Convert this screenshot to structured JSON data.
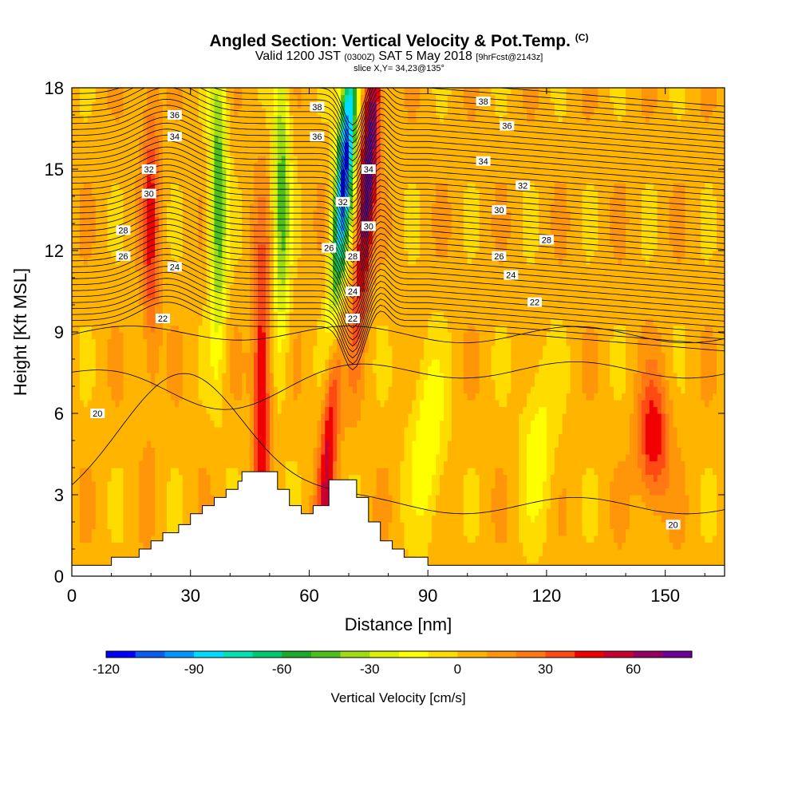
{
  "header": {
    "title_main": "Angled Section: Vertical Velocity & Pot.Temp.",
    "title_mark": "(C)",
    "valid_pre": "Valid 1200 JST",
    "valid_utc": "(0300Z)",
    "valid_date": "SAT 5 May 2018",
    "valid_fcst": "[9hrFcst@2143z]",
    "slice": "slice X,Y= 34,23@135°"
  },
  "chart_data": {
    "type": "heatmap",
    "xlabel": "Distance [nm]",
    "ylabel": "Height [Kft MSL]",
    "xlim": [
      0,
      165
    ],
    "ylim": [
      0,
      18
    ],
    "xticks": [
      0,
      30,
      60,
      90,
      120,
      150
    ],
    "yticks": [
      0,
      3,
      6,
      9,
      12,
      15,
      18
    ],
    "colorbar": {
      "label": "Vertical Velocity [cm/s]",
      "ticks": [
        -120,
        -90,
        -60,
        -30,
        0,
        30,
        60
      ],
      "levels": [
        -120,
        -110,
        -100,
        -90,
        -80,
        -70,
        -60,
        -50,
        -40,
        -30,
        -20,
        -10,
        0,
        10,
        20,
        30,
        40,
        50,
        60,
        70,
        80
      ],
      "colors": [
        "#0000ff",
        "#0a5cf0",
        "#0096ff",
        "#00dcff",
        "#00e0b0",
        "#00c870",
        "#1caa2a",
        "#4cbf1c",
        "#a0dc14",
        "#dcf000",
        "#ffff00",
        "#ffdc00",
        "#ffb400",
        "#ff960a",
        "#ff7814",
        "#ff4a14",
        "#f00000",
        "#c80032",
        "#960064",
        "#6e0096"
      ]
    },
    "velocity_features": [
      {
        "kind": "updraft",
        "x": 20,
        "y": 13,
        "peak_cms": 35
      },
      {
        "kind": "updraft",
        "x": 48,
        "y": 7,
        "peak_cms": 50
      },
      {
        "kind": "updraft",
        "x": 65,
        "y": 5,
        "peak_cms": 50
      },
      {
        "kind": "updraft",
        "x": 75,
        "y": 15,
        "peak_cms": 75
      },
      {
        "kind": "downdraft",
        "x": 69,
        "y": 15,
        "peak_cms": -120
      },
      {
        "kind": "downdraft",
        "x": 37,
        "y": 14,
        "peak_cms": -55
      },
      {
        "kind": "downdraft",
        "x": 53,
        "y": 14,
        "peak_cms": -50
      },
      {
        "kind": "updraft",
        "x": 147,
        "y": 5,
        "peak_cms": 45
      },
      {
        "kind": "weak_downdraft",
        "x": 90,
        "y": 5,
        "peak_cms": -25
      },
      {
        "kind": "weak_downdraft",
        "x": 118,
        "y": 5,
        "peak_cms": -20
      }
    ],
    "terrain": [
      [
        0,
        0.4
      ],
      [
        10,
        0.4
      ],
      [
        10,
        0.7
      ],
      [
        17,
        0.7
      ],
      [
        17,
        1.0
      ],
      [
        20,
        1.0
      ],
      [
        20,
        1.3
      ],
      [
        23,
        1.3
      ],
      [
        23,
        1.6
      ],
      [
        27,
        1.6
      ],
      [
        27,
        1.9
      ],
      [
        30,
        1.9
      ],
      [
        30,
        2.3
      ],
      [
        33,
        2.3
      ],
      [
        33,
        2.6
      ],
      [
        36,
        2.6
      ],
      [
        36,
        2.9
      ],
      [
        39,
        2.9
      ],
      [
        39,
        3.2
      ],
      [
        42,
        3.2
      ],
      [
        42,
        3.5
      ],
      [
        43,
        3.5
      ],
      [
        43,
        3.85
      ],
      [
        52,
        3.85
      ],
      [
        52,
        3.2
      ],
      [
        55,
        3.2
      ],
      [
        55,
        2.6
      ],
      [
        58,
        2.6
      ],
      [
        58,
        2.3
      ],
      [
        61,
        2.3
      ],
      [
        61,
        2.6
      ],
      [
        65,
        2.6
      ],
      [
        65,
        3.55
      ],
      [
        72,
        3.55
      ],
      [
        72,
        2.9
      ],
      [
        75,
        2.9
      ],
      [
        75,
        2.0
      ],
      [
        78,
        2.0
      ],
      [
        78,
        1.3
      ],
      [
        81,
        1.3
      ],
      [
        81,
        1.0
      ],
      [
        84,
        1.0
      ],
      [
        84,
        0.7
      ],
      [
        90,
        0.7
      ],
      [
        90,
        0.4
      ],
      [
        165,
        0.4
      ]
    ],
    "theta_labels": [
      {
        "x": 26,
        "y": 17.0,
        "text": "36"
      },
      {
        "x": 26,
        "y": 16.2,
        "text": "34"
      },
      {
        "x": 19.5,
        "y": 15.0,
        "text": "32"
      },
      {
        "x": 19.5,
        "y": 14.1,
        "text": "30"
      },
      {
        "x": 13,
        "y": 12.75,
        "text": "28"
      },
      {
        "x": 13,
        "y": 11.8,
        "text": "26"
      },
      {
        "x": 26,
        "y": 11.4,
        "text": "24"
      },
      {
        "x": 23,
        "y": 9.5,
        "text": "22"
      },
      {
        "x": 6.5,
        "y": 6.0,
        "text": "20"
      },
      {
        "x": 62,
        "y": 17.3,
        "text": "38"
      },
      {
        "x": 62,
        "y": 16.2,
        "text": "36"
      },
      {
        "x": 75,
        "y": 15.0,
        "text": "34"
      },
      {
        "x": 68.5,
        "y": 13.8,
        "text": "32"
      },
      {
        "x": 75,
        "y": 12.9,
        "text": "30"
      },
      {
        "x": 65,
        "y": 12.1,
        "text": "26"
      },
      {
        "x": 71,
        "y": 11.8,
        "text": "28"
      },
      {
        "x": 71,
        "y": 10.5,
        "text": "24"
      },
      {
        "x": 71,
        "y": 9.5,
        "text": "22"
      },
      {
        "x": 104,
        "y": 17.5,
        "text": "38"
      },
      {
        "x": 110,
        "y": 16.6,
        "text": "36"
      },
      {
        "x": 104,
        "y": 15.3,
        "text": "34"
      },
      {
        "x": 114,
        "y": 14.4,
        "text": "32"
      },
      {
        "x": 108,
        "y": 13.5,
        "text": "30"
      },
      {
        "x": 120,
        "y": 12.4,
        "text": "28"
      },
      {
        "x": 108,
        "y": 11.8,
        "text": "26"
      },
      {
        "x": 111,
        "y": 11.1,
        "text": "24"
      },
      {
        "x": 117,
        "y": 10.1,
        "text": "22"
      },
      {
        "x": 152,
        "y": 1.9,
        "text": "20"
      }
    ]
  }
}
